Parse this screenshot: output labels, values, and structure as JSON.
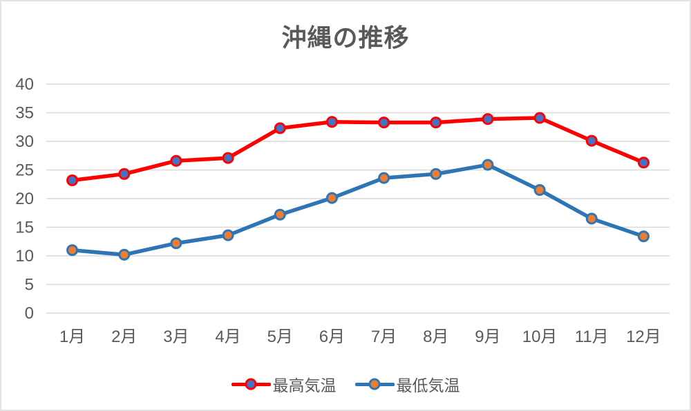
{
  "chart_data": {
    "type": "line",
    "title": "沖縄の推移",
    "categories": [
      "1月",
      "2月",
      "3月",
      "4月",
      "5月",
      "6月",
      "7月",
      "8月",
      "9月",
      "10月",
      "11月",
      "12月"
    ],
    "series": [
      {
        "name": "最高気温",
        "values": [
          23.2,
          24.3,
          26.6,
          27.1,
          32.3,
          33.4,
          33.3,
          33.3,
          33.9,
          34.1,
          30.1,
          26.3
        ],
        "line_color": "#FF0000",
        "marker_fill": "#4472C4"
      },
      {
        "name": "最低気温",
        "values": [
          11.0,
          10.2,
          12.2,
          13.6,
          17.2,
          20.1,
          23.6,
          24.3,
          25.9,
          21.5,
          16.5,
          13.4
        ],
        "line_color": "#2E75B6",
        "marker_fill": "#ED7D31"
      }
    ],
    "xlabel": "",
    "ylabel": "",
    "ylim": [
      0,
      40
    ],
    "yticks": [
      0,
      5,
      10,
      15,
      20,
      25,
      30,
      35,
      40
    ],
    "grid": true,
    "legend_position": "bottom",
    "text_color": "#595959",
    "grid_color": "#D9D9D9"
  }
}
